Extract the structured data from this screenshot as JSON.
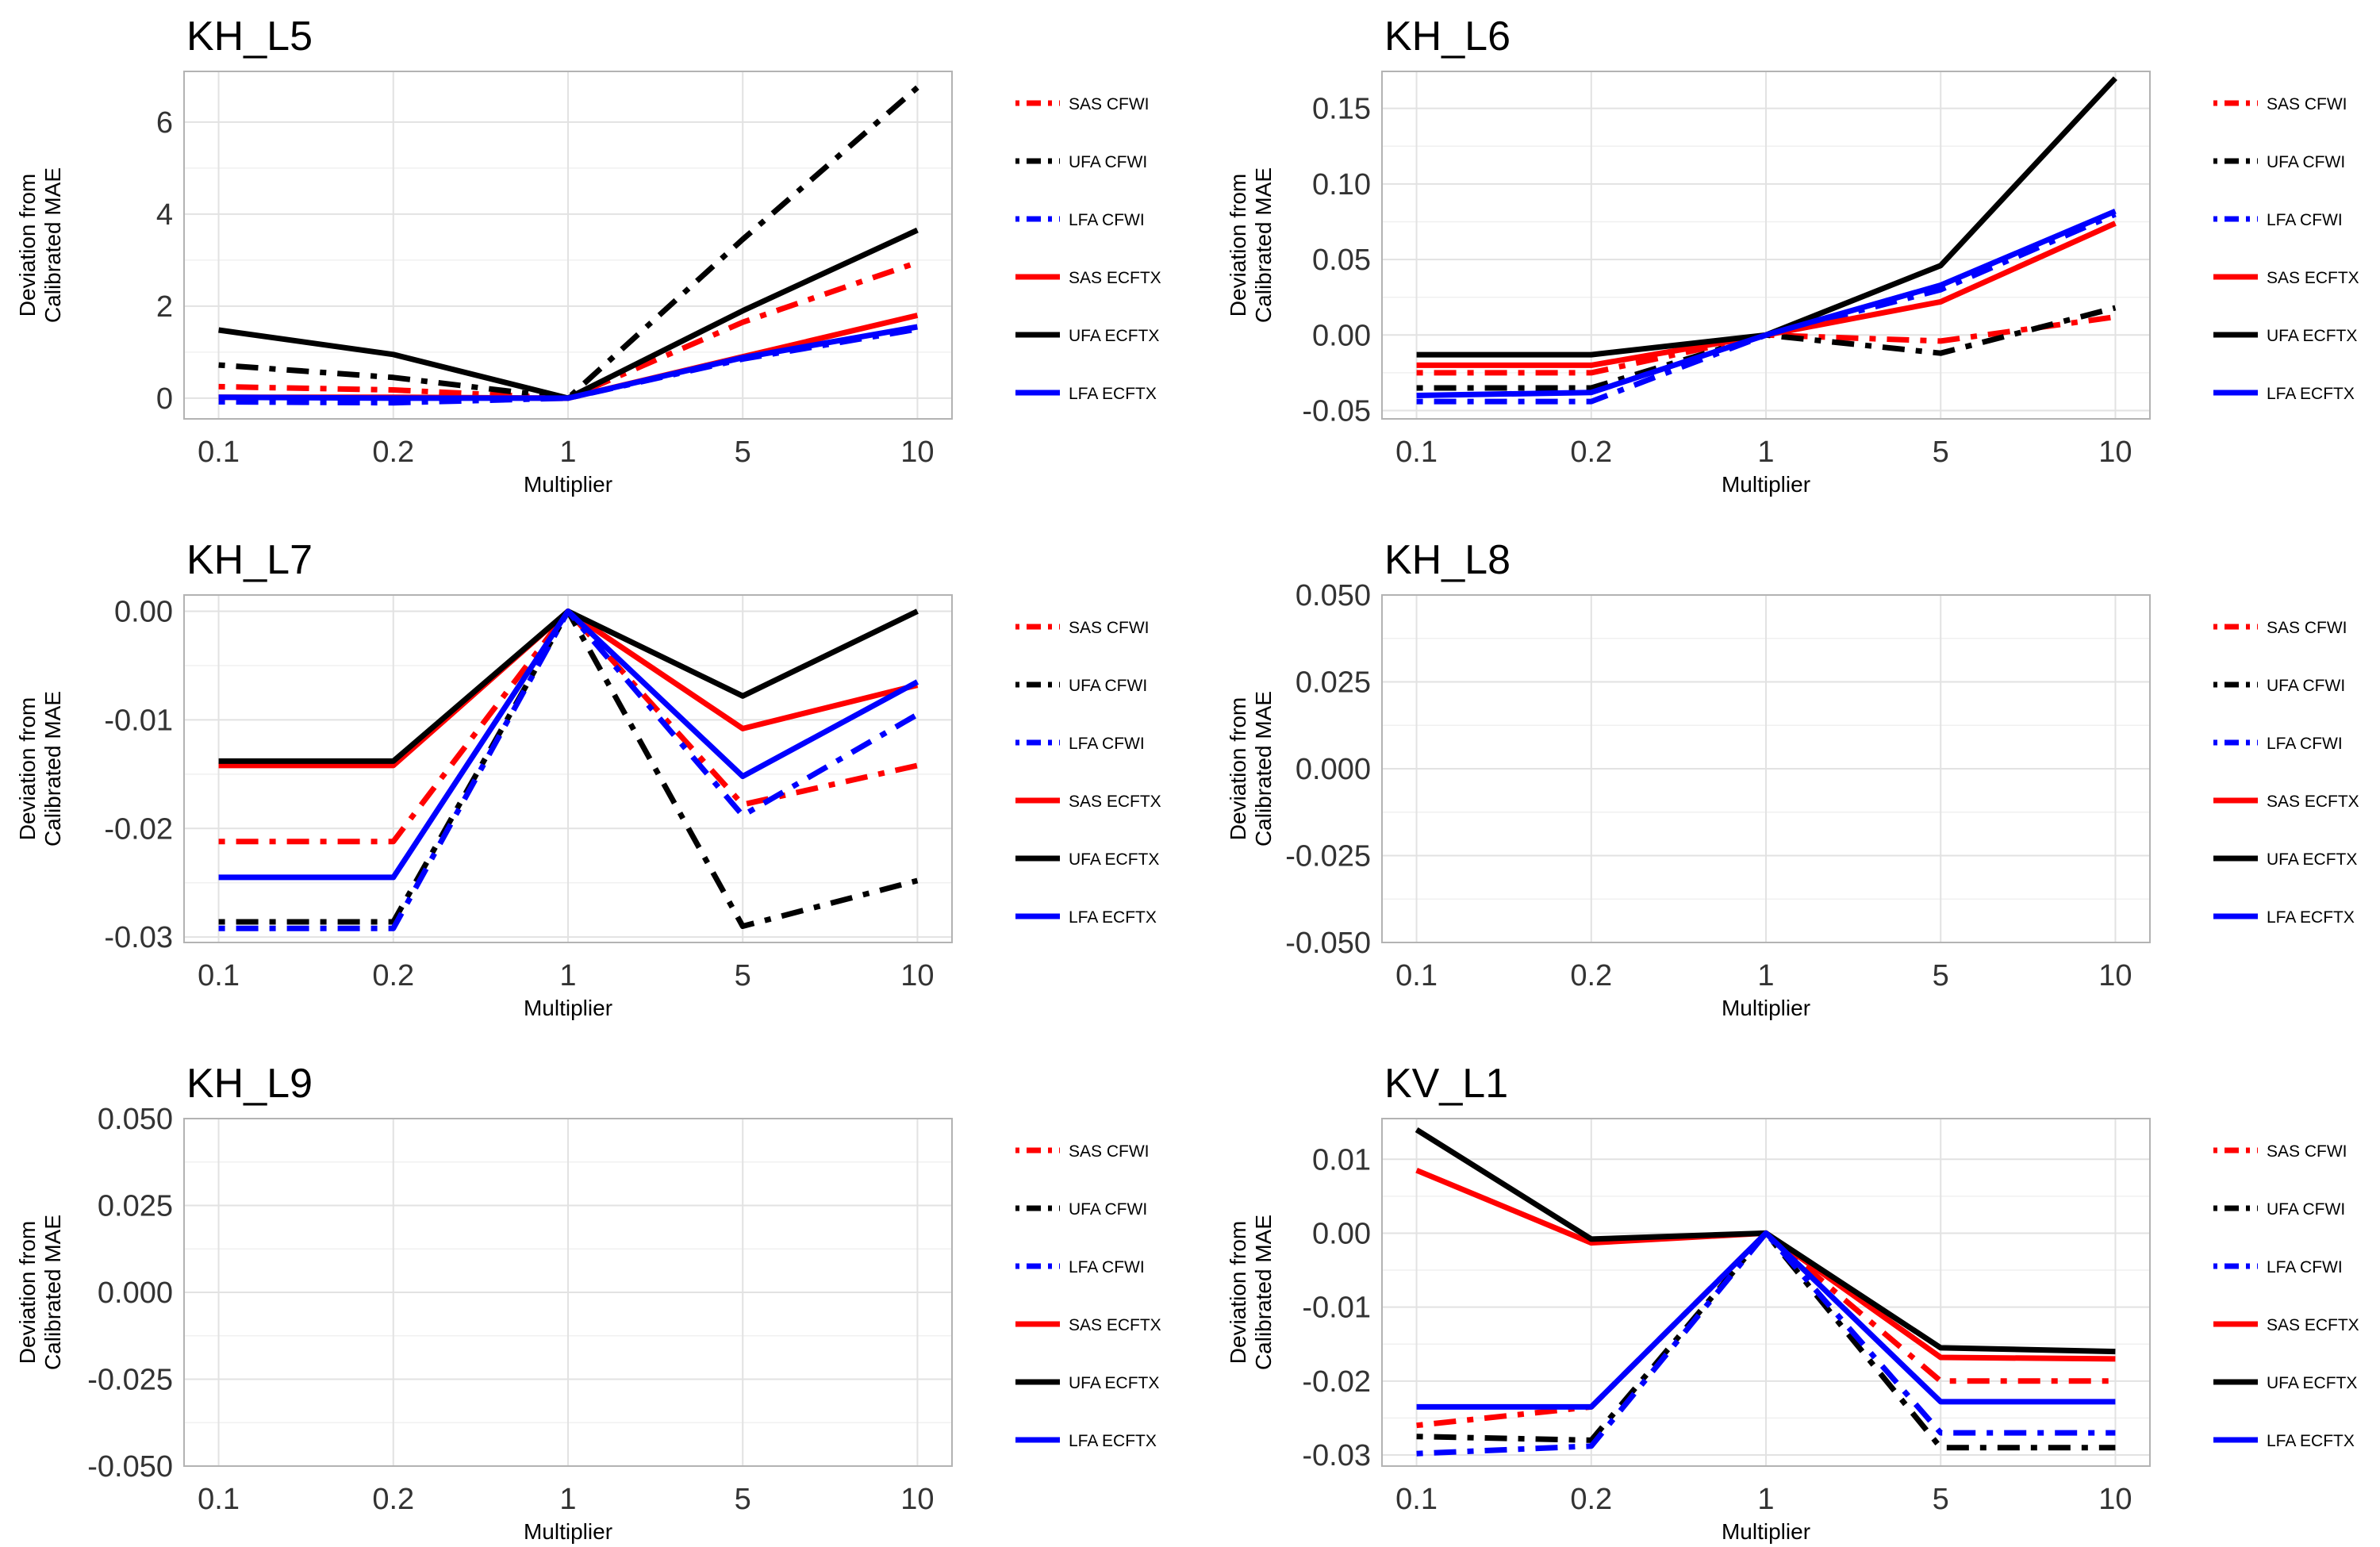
{
  "figure": {
    "ylabel_line1": "Deviation from",
    "ylabel_line2": "Calibrated MAE",
    "xlabel": "Multiplier"
  },
  "legend_entries": [
    {
      "label": "SAS CFWI",
      "color": "#ff0000",
      "dash": "dashdot"
    },
    {
      "label": "UFA CFWI",
      "color": "#000000",
      "dash": "dashdot"
    },
    {
      "label": "LFA CFWI",
      "color": "#0000ff",
      "dash": "dashdot"
    },
    {
      "label": "SAS ECFTX",
      "color": "#ff0000",
      "dash": "solid"
    },
    {
      "label": "UFA ECFTX",
      "color": "#000000",
      "dash": "solid"
    },
    {
      "label": "LFA ECFTX",
      "color": "#0000ff",
      "dash": "solid"
    }
  ],
  "chart_data": [
    {
      "type": "line",
      "title": "KH_L5",
      "xlabel": "Multiplier",
      "ylabel": "Deviation from Calibrated MAE",
      "categories": [
        "0.1",
        "0.2",
        "1",
        "5",
        "10"
      ],
      "ylim": [
        -0.45,
        7.1
      ],
      "yticks": [
        0,
        2,
        4,
        6
      ],
      "ytick_labels": [
        "0",
        "2",
        "4",
        "6"
      ],
      "grid": true,
      "legend": "right",
      "series": [
        {
          "name": "SAS CFWI",
          "values": [
            0.25,
            0.18,
            0.0,
            1.65,
            2.95
          ]
        },
        {
          "name": "UFA CFWI",
          "values": [
            0.72,
            0.45,
            0.0,
            3.45,
            6.75
          ]
        },
        {
          "name": "LFA CFWI",
          "values": [
            -0.08,
            -0.1,
            0.0,
            0.85,
            1.5
          ]
        },
        {
          "name": "SAS ECFTX",
          "values": [
            0.02,
            0.02,
            0.0,
            0.9,
            1.8
          ]
        },
        {
          "name": "UFA ECFTX",
          "values": [
            1.48,
            0.95,
            0.0,
            1.9,
            3.65
          ]
        },
        {
          "name": "LFA ECFTX",
          "values": [
            0.02,
            0.0,
            0.0,
            0.88,
            1.55
          ]
        }
      ]
    },
    {
      "type": "line",
      "title": "KH_L6",
      "xlabel": "Multiplier",
      "ylabel": "Deviation from Calibrated MAE",
      "categories": [
        "0.1",
        "0.2",
        "1",
        "5",
        "10"
      ],
      "ylim": [
        -0.0555,
        0.1745
      ],
      "yticks": [
        -0.05,
        0.0,
        0.05,
        0.1,
        0.15
      ],
      "ytick_labels": [
        "-0.05",
        "0.00",
        "0.05",
        "0.10",
        "0.15"
      ],
      "grid": true,
      "legend": "right",
      "series": [
        {
          "name": "SAS CFWI",
          "values": [
            -0.025,
            -0.025,
            0.0,
            -0.004,
            0.012
          ]
        },
        {
          "name": "UFA CFWI",
          "values": [
            -0.035,
            -0.035,
            0.0,
            -0.012,
            0.018
          ]
        },
        {
          "name": "LFA CFWI",
          "values": [
            -0.044,
            -0.044,
            0.0,
            0.03,
            0.08
          ]
        },
        {
          "name": "SAS ECFTX",
          "values": [
            -0.02,
            -0.02,
            0.0,
            0.022,
            0.074
          ]
        },
        {
          "name": "UFA ECFTX",
          "values": [
            -0.013,
            -0.013,
            0.0,
            0.046,
            0.17
          ]
        },
        {
          "name": "LFA ECFTX",
          "values": [
            -0.04,
            -0.038,
            0.0,
            0.033,
            0.082
          ]
        }
      ]
    },
    {
      "type": "line",
      "title": "KH_L7",
      "xlabel": "Multiplier",
      "ylabel": "Deviation from Calibrated MAE",
      "categories": [
        "0.1",
        "0.2",
        "1",
        "5",
        "10"
      ],
      "ylim": [
        -0.0305,
        0.0015
      ],
      "yticks": [
        -0.03,
        -0.02,
        -0.01,
        0.0
      ],
      "ytick_labels": [
        "-0.03",
        "-0.02",
        "-0.01",
        "0.00"
      ],
      "grid": true,
      "legend": "right",
      "series": [
        {
          "name": "SAS CFWI",
          "values": [
            -0.0212,
            -0.0212,
            0.0,
            -0.0178,
            -0.0142
          ]
        },
        {
          "name": "UFA CFWI",
          "values": [
            -0.0286,
            -0.0286,
            0.0,
            -0.029,
            -0.0248
          ]
        },
        {
          "name": "LFA CFWI",
          "values": [
            -0.0292,
            -0.0292,
            0.0,
            -0.0188,
            -0.0095
          ]
        },
        {
          "name": "SAS ECFTX",
          "values": [
            -0.0142,
            -0.0142,
            0.0,
            -0.0108,
            -0.0068
          ]
        },
        {
          "name": "UFA ECFTX",
          "values": [
            -0.0138,
            -0.0138,
            0.0,
            -0.0078,
            0.0
          ]
        },
        {
          "name": "LFA ECFTX",
          "values": [
            -0.0245,
            -0.0245,
            0.0,
            -0.0152,
            -0.0065
          ]
        }
      ]
    },
    {
      "type": "line",
      "title": "KH_L8",
      "xlabel": "Multiplier",
      "ylabel": "Deviation from Calibrated MAE",
      "categories": [
        "0.1",
        "0.2",
        "1",
        "5",
        "10"
      ],
      "ylim": [
        -0.05,
        0.05
      ],
      "yticks": [
        -0.05,
        -0.025,
        0.0,
        0.025,
        0.05
      ],
      "ytick_labels": [
        "-0.050",
        "-0.025",
        "0.000",
        "0.025",
        "0.050"
      ],
      "grid": true,
      "legend": "right",
      "series": []
    },
    {
      "type": "line",
      "title": "KH_L9",
      "xlabel": "Multiplier",
      "ylabel": "Deviation from Calibrated MAE",
      "categories": [
        "0.1",
        "0.2",
        "1",
        "5",
        "10"
      ],
      "ylim": [
        -0.05,
        0.05
      ],
      "yticks": [
        -0.05,
        -0.025,
        0.0,
        0.025,
        0.05
      ],
      "ytick_labels": [
        "-0.050",
        "-0.025",
        "0.000",
        "0.025",
        "0.050"
      ],
      "grid": true,
      "legend": "right",
      "series": []
    },
    {
      "type": "line",
      "title": "KV_L1",
      "xlabel": "Multiplier",
      "ylabel": "Deviation from Calibrated MAE",
      "categories": [
        "0.1",
        "0.2",
        "1",
        "5",
        "10"
      ],
      "ylim": [
        -0.0315,
        0.0155
      ],
      "yticks": [
        -0.03,
        -0.02,
        -0.01,
        0.0,
        0.01
      ],
      "ytick_labels": [
        "-0.03",
        "-0.02",
        "-0.01",
        "0.00",
        "0.01"
      ],
      "grid": true,
      "legend": "right",
      "series": [
        {
          "name": "SAS CFWI",
          "values": [
            -0.026,
            -0.0235,
            0.0,
            -0.02,
            -0.02
          ]
        },
        {
          "name": "UFA CFWI",
          "values": [
            -0.0275,
            -0.028,
            0.0,
            -0.029,
            -0.029
          ]
        },
        {
          "name": "LFA CFWI",
          "values": [
            -0.0298,
            -0.0288,
            0.0,
            -0.027,
            -0.027
          ]
        },
        {
          "name": "SAS ECFTX",
          "values": [
            0.0085,
            -0.0013,
            0.0,
            -0.0168,
            -0.017
          ]
        },
        {
          "name": "UFA ECFTX",
          "values": [
            0.014,
            -0.0008,
            0.0,
            -0.0155,
            -0.016
          ]
        },
        {
          "name": "LFA ECFTX",
          "values": [
            -0.0235,
            -0.0235,
            0.0,
            -0.0228,
            -0.0228
          ]
        }
      ]
    }
  ]
}
